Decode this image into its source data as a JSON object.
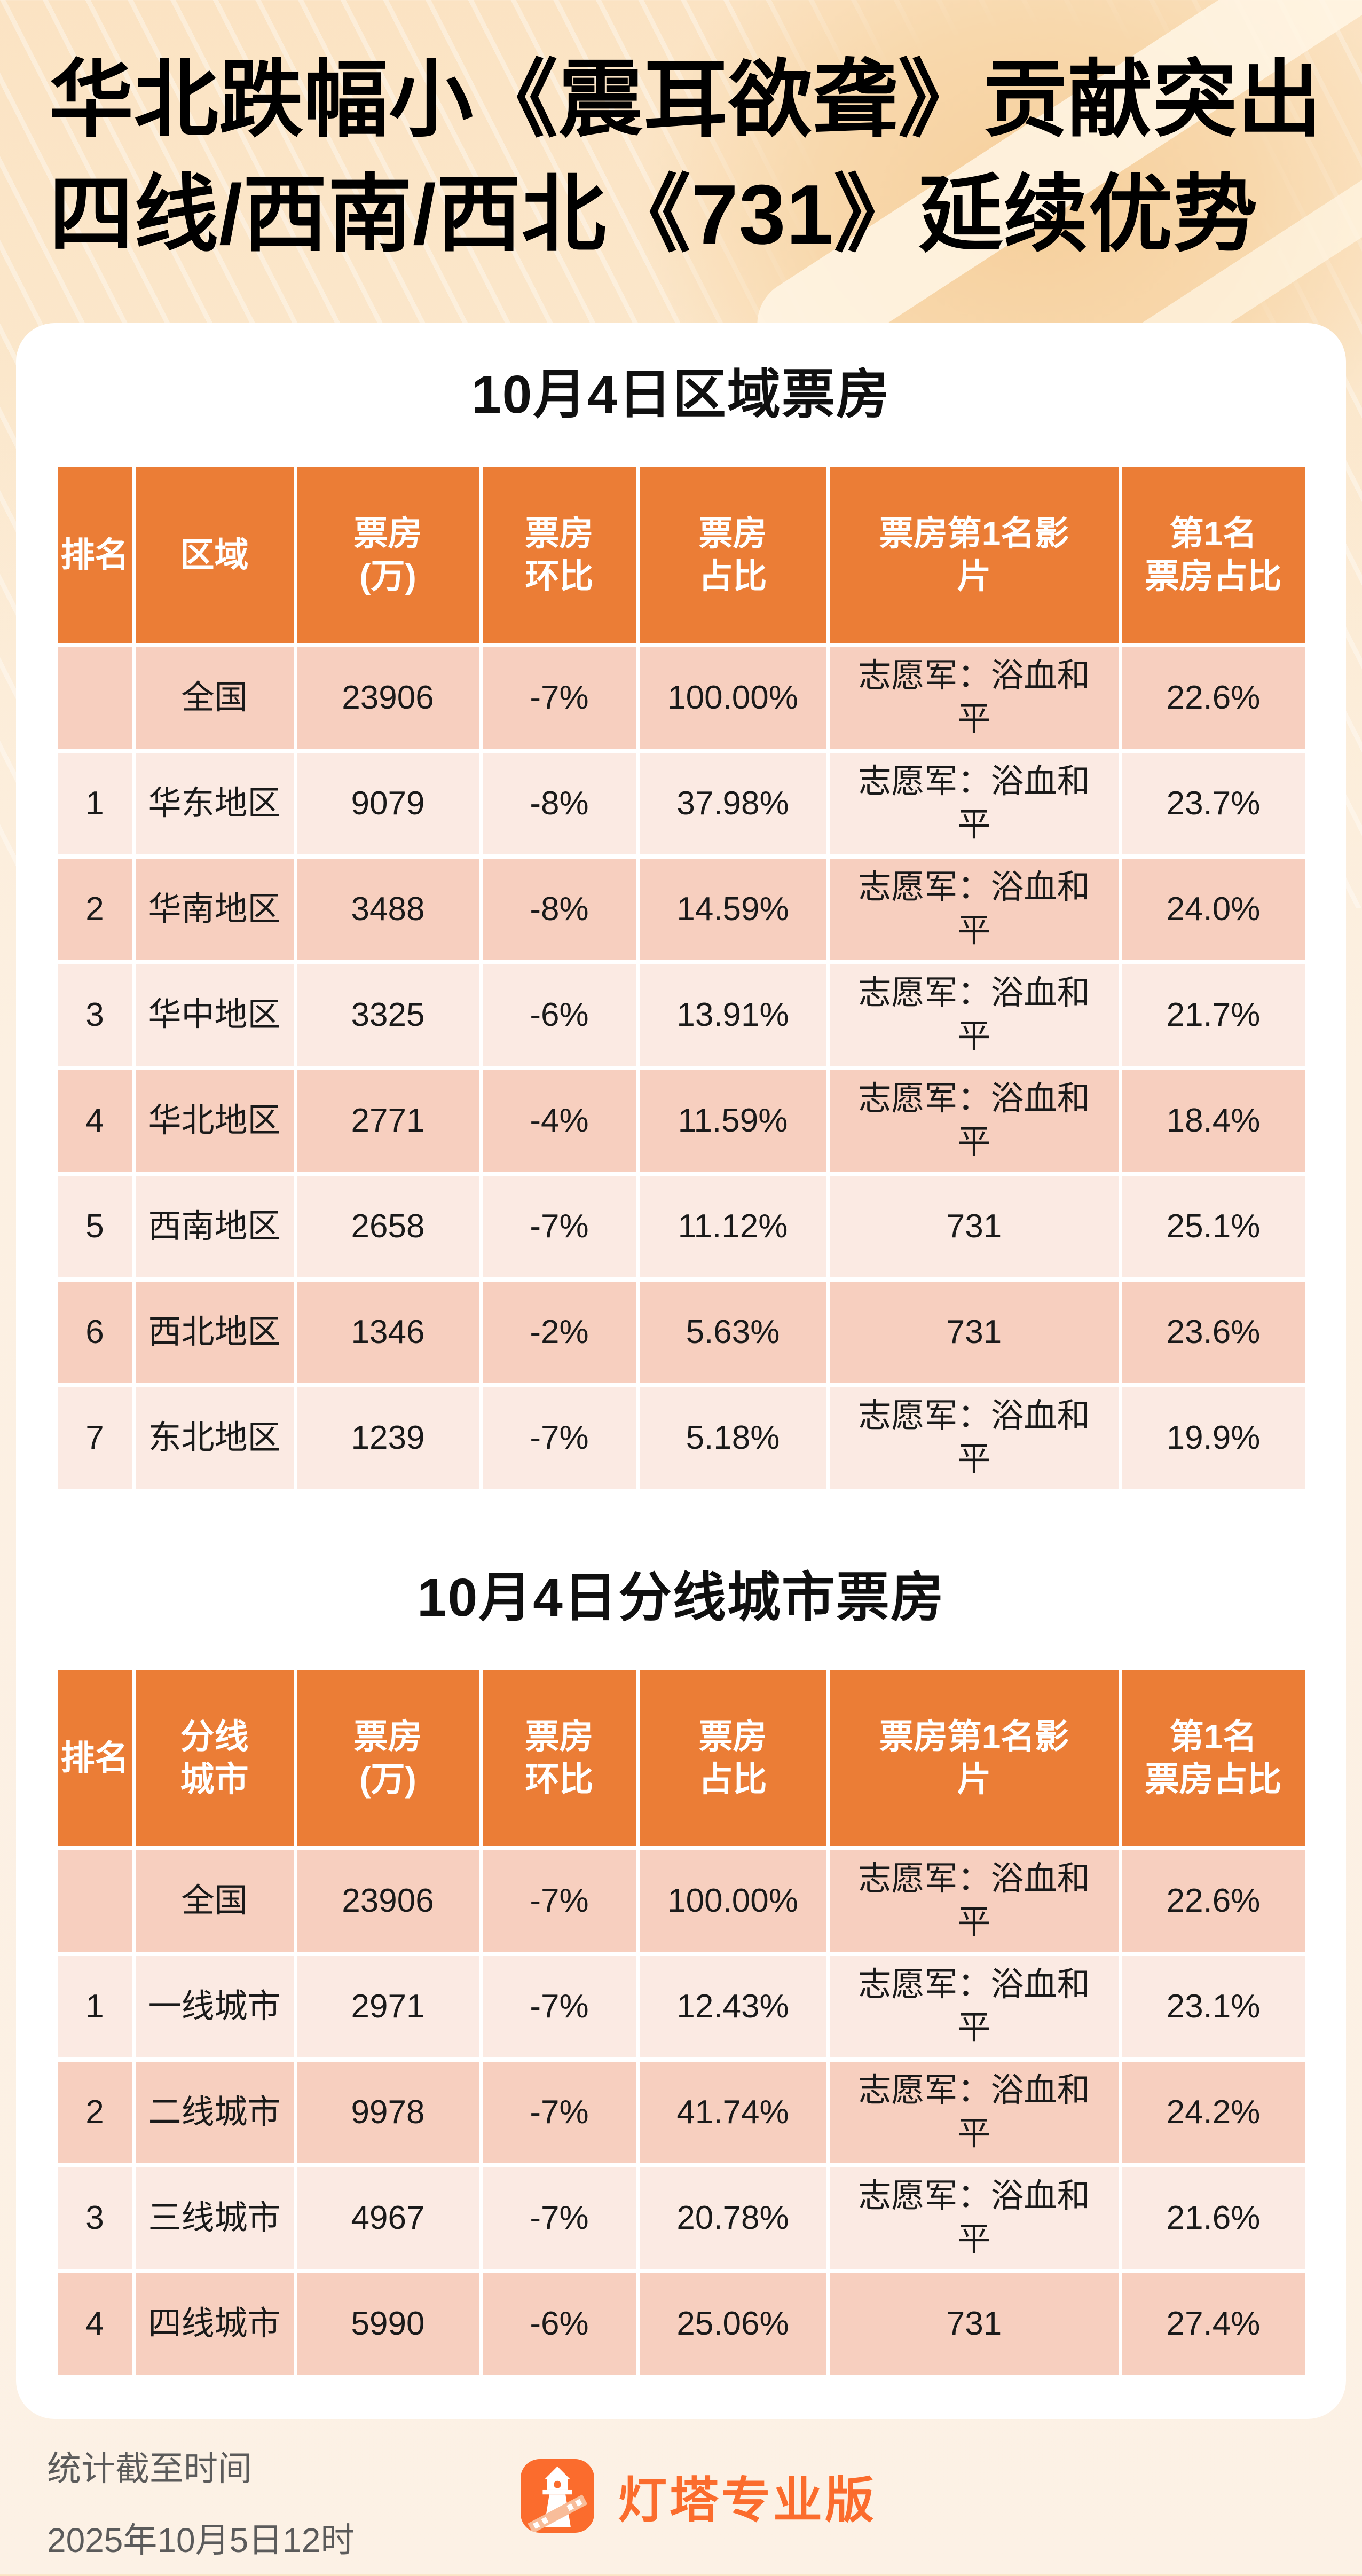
{
  "title": {
    "line1": "华北跌幅小《震耳欲聋》贡献突出",
    "line2": "四线/西南/西北《731》延续优势"
  },
  "colors": {
    "accent_orange": "#EB7D36",
    "brand_orange": "#FB6C2D",
    "row_dark": "#F7CFBF",
    "row_light": "#FBEAE3",
    "negative_red": "#F01212",
    "card_white": "#FFFFFF",
    "page_top": "#FBE3C3",
    "page_bottom": "#FCF1E5"
  },
  "tables": [
    {
      "title": "10月4日区域票房",
      "headers": [
        "排名",
        "区域",
        "票房\n(万)",
        "票房\n环比",
        "票房\n占比",
        "票房第1名影\n片",
        "第1名\n票房占比"
      ],
      "rows": [
        {
          "rank": "",
          "name": "全国",
          "name_red": false,
          "box": "23906",
          "wow": "-7%",
          "wow_red": false,
          "share": "100.00%",
          "top_film": "志愿军：浴血和\n平",
          "top_film_share": "22.6%"
        },
        {
          "rank": "1",
          "name": "华东地区",
          "name_red": false,
          "box": "9079",
          "wow": "-8%",
          "wow_red": false,
          "share": "37.98%",
          "top_film": "志愿军：浴血和\n平",
          "top_film_share": "23.7%"
        },
        {
          "rank": "2",
          "name": "华南地区",
          "name_red": false,
          "box": "3488",
          "wow": "-8%",
          "wow_red": false,
          "share": "14.59%",
          "top_film": "志愿军：浴血和\n平",
          "top_film_share": "24.0%"
        },
        {
          "rank": "3",
          "name": "华中地区",
          "name_red": false,
          "box": "3325",
          "wow": "-6%",
          "wow_red": false,
          "share": "13.91%",
          "top_film": "志愿军：浴血和\n平",
          "top_film_share": "21.7%"
        },
        {
          "rank": "4",
          "name": "华北地区",
          "name_red": false,
          "box": "2771",
          "wow": "-4%",
          "wow_red": true,
          "share": "11.59%",
          "top_film": "志愿军：浴血和\n平",
          "top_film_share": "18.4%"
        },
        {
          "rank": "5",
          "name": "西南地区",
          "name_red": false,
          "box": "2658",
          "wow": "-7%",
          "wow_red": false,
          "share": "11.12%",
          "top_film": "731",
          "top_film_share": "25.1%"
        },
        {
          "rank": "6",
          "name": "西北地区",
          "name_red": false,
          "box": "1346",
          "wow": "-2%",
          "wow_red": true,
          "share": "5.63%",
          "top_film": "731",
          "top_film_share": "23.6%"
        },
        {
          "rank": "7",
          "name": "东北地区",
          "name_red": false,
          "box": "1239",
          "wow": "-7%",
          "wow_red": false,
          "share": "5.18%",
          "top_film": "志愿军：浴血和\n平",
          "top_film_share": "19.9%"
        }
      ]
    },
    {
      "title": "10月4日分线城市票房",
      "headers": [
        "排名",
        "分线\n城市",
        "票房\n(万)",
        "票房\n环比",
        "票房\n占比",
        "票房第1名影\n片",
        "第1名\n票房占比"
      ],
      "rows": [
        {
          "rank": "",
          "name": "全国",
          "name_red": false,
          "box": "23906",
          "wow": "-7%",
          "wow_red": false,
          "share": "100.00%",
          "top_film": "志愿军：浴血和\n平",
          "top_film_share": "22.6%"
        },
        {
          "rank": "1",
          "name": "一线城市",
          "name_red": true,
          "box": "2971",
          "wow": "-7%",
          "wow_red": false,
          "share": "12.43%",
          "top_film": "志愿军：浴血和\n平",
          "top_film_share": "23.1%"
        },
        {
          "rank": "2",
          "name": "二线城市",
          "name_red": true,
          "box": "9978",
          "wow": "-7%",
          "wow_red": false,
          "share": "41.74%",
          "top_film": "志愿军：浴血和\n平",
          "top_film_share": "24.2%"
        },
        {
          "rank": "3",
          "name": "三线城市",
          "name_red": false,
          "box": "4967",
          "wow": "-7%",
          "wow_red": false,
          "share": "20.78%",
          "top_film": "志愿军：浴血和\n平",
          "top_film_share": "21.6%"
        },
        {
          "rank": "4",
          "name": "四线城市",
          "name_red": false,
          "box": "5990",
          "wow": "-6%",
          "wow_red": false,
          "share": "25.06%",
          "top_film": "731",
          "top_film_share": "27.4%"
        }
      ]
    }
  ],
  "footer": {
    "stats_label": "统计截至时间",
    "stats_datetime": "2025年10月5日12时",
    "brand": "灯塔专业版"
  }
}
